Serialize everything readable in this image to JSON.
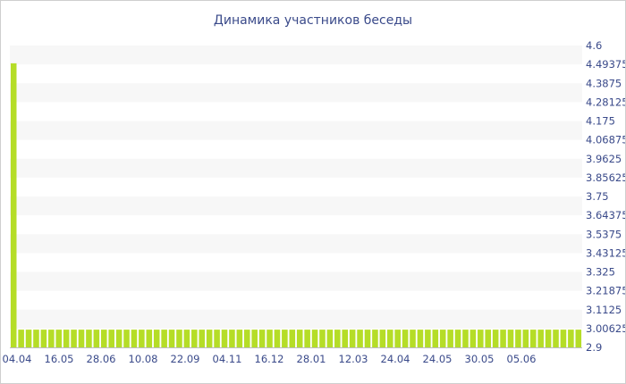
{
  "chart_data": {
    "type": "bar",
    "title": "Динамика участников беседы",
    "xlabel": "",
    "ylabel": "",
    "ylim": [
      2.9,
      4.6
    ],
    "yticks": [
      "4.6",
      "4.49375",
      "4.3875",
      "4.28125",
      "4.175",
      "4.06875",
      "3.9625",
      "3.85625",
      "3.75",
      "3.64375",
      "3.5375",
      "3.43125",
      "3.325",
      "3.21875",
      "3.1125",
      "3.00625",
      "2.9"
    ],
    "xticks": [
      "04.04",
      "16.05",
      "28.06",
      "10.08",
      "22.09",
      "04.11",
      "16.12",
      "28.01",
      "12.03",
      "24.04",
      "24.05",
      "30.05",
      "05.06"
    ],
    "bar_color": "#b5dd27",
    "grid": "horizontal alternating bands",
    "series": [
      {
        "values": [
          4.5,
          3,
          3,
          3,
          3,
          3,
          3,
          3,
          3,
          3,
          3,
          3,
          3,
          3,
          3,
          3,
          3,
          3,
          3,
          3,
          3,
          3,
          3,
          3,
          3,
          3,
          3,
          3,
          3,
          3,
          3,
          3,
          3,
          3,
          3,
          3,
          3,
          3,
          3,
          3,
          3,
          3,
          3,
          3,
          3,
          3,
          3,
          3,
          3,
          3,
          3,
          3,
          3,
          3,
          3,
          3,
          3,
          3,
          3,
          3,
          3,
          3,
          3,
          3,
          3,
          3,
          3,
          3,
          3,
          3,
          3,
          3,
          3,
          3,
          3,
          3
        ]
      }
    ]
  }
}
